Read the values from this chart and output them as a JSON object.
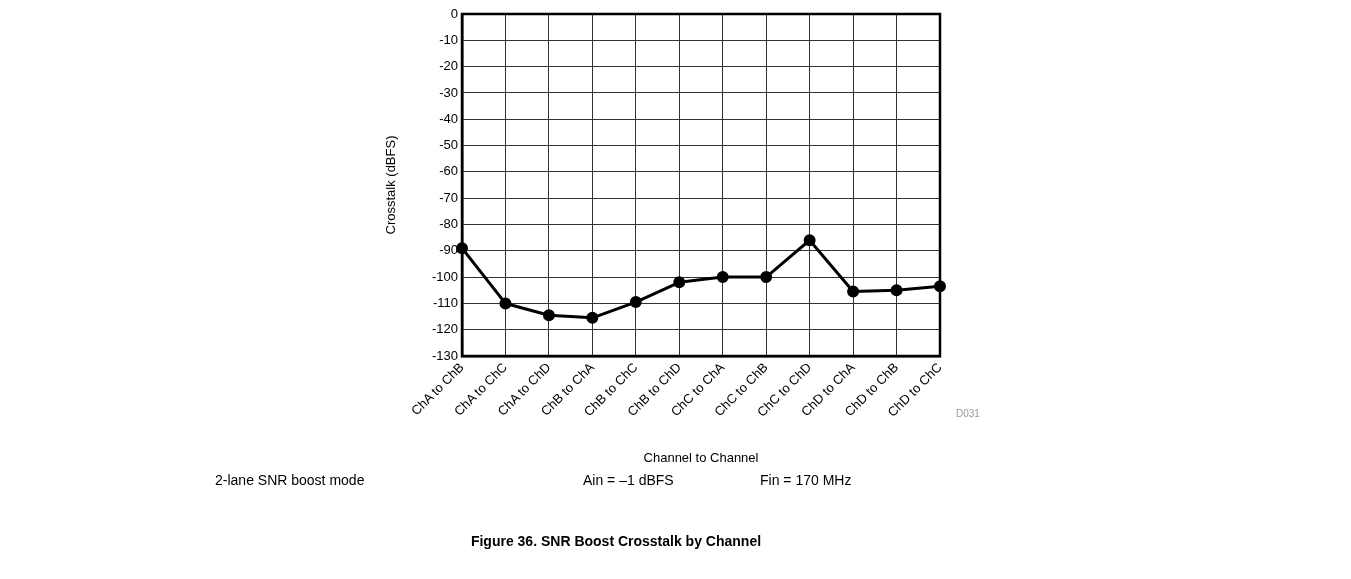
{
  "chart_data": {
    "type": "line",
    "title": "Figure 36. SNR Boost Crosstalk by Channel",
    "xlabel": "Channel to Channel",
    "ylabel": "Crosstalk (dBFS)",
    "categories": [
      "ChA to ChB",
      "ChA to ChC",
      "ChA to ChD",
      "ChB to ChA",
      "ChB to ChC",
      "ChB to ChD",
      "ChC to ChA",
      "ChC to ChB",
      "ChC to ChD",
      "ChD to ChA",
      "ChD to ChB",
      "ChD to ChC"
    ],
    "series": [
      {
        "color": "#000000",
        "values": [
          -89,
          -110,
          -114.5,
          -115.5,
          -109.5,
          -102,
          -100,
          -100,
          -86,
          -105.5,
          -105,
          -103.5
        ]
      }
    ],
    "ylim": [
      -130,
      0
    ],
    "yticks": [
      0,
      -10,
      -20,
      -30,
      -40,
      -50,
      -60,
      -70,
      -80,
      -90,
      -100,
      -110,
      -120,
      -130
    ],
    "grid": true,
    "legend": false,
    "marker": "circle",
    "line_style": "solid",
    "annotations": [
      "2-lane SNR boost mode",
      "Ain = –1 dBFS",
      "Fin = 170 MHz",
      "D031"
    ]
  }
}
